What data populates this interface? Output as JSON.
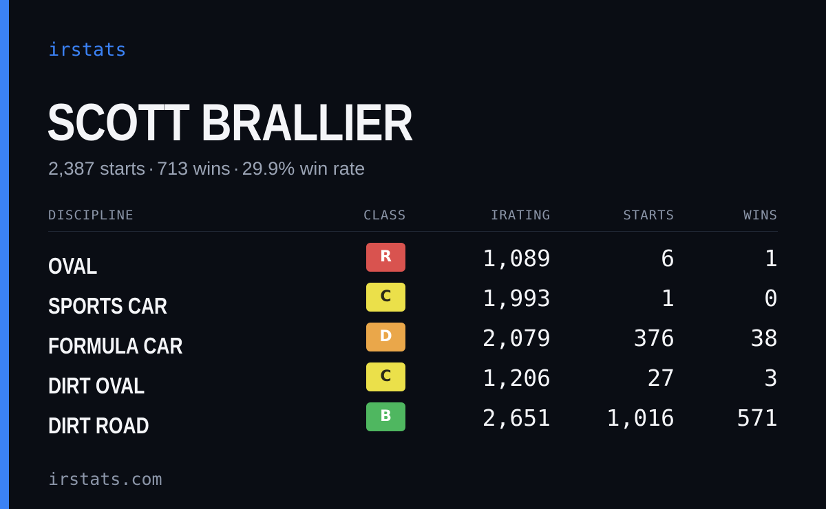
{
  "brand": "irstats",
  "driver": {
    "name": "SCOTT BRALLIER",
    "starts_text": "2,387 starts",
    "wins_text": "713 wins",
    "win_rate_text": "29.9% win rate",
    "separator": "·"
  },
  "table": {
    "headers": {
      "discipline": "DISCIPLINE",
      "class": "CLASS",
      "irating": "IRATING",
      "starts": "STARTS",
      "wins": "WINS"
    },
    "rows": [
      {
        "discipline": "OVAL",
        "class": "R",
        "class_color": "#d9534f",
        "irating": "1,089",
        "starts": "6",
        "wins": "1"
      },
      {
        "discipline": "SPORTS CAR",
        "class": "C",
        "class_color": "#ebe04a",
        "irating": "1,993",
        "starts": "1",
        "wins": "0"
      },
      {
        "discipline": "FORMULA CAR",
        "class": "D",
        "class_color": "#eaa74a",
        "irating": "2,079",
        "starts": "376",
        "wins": "38"
      },
      {
        "discipline": "DIRT OVAL",
        "class": "C",
        "class_color": "#ebe04a",
        "irating": "1,206",
        "starts": "27",
        "wins": "3"
      },
      {
        "discipline": "DIRT ROAD",
        "class": "B",
        "class_color": "#4fb760",
        "irating": "2,651",
        "starts": "1,016",
        "wins": "571"
      }
    ]
  },
  "footer": "irstats.com",
  "colors": {
    "accent": "#3b82f6",
    "background": "#0a0d14"
  }
}
